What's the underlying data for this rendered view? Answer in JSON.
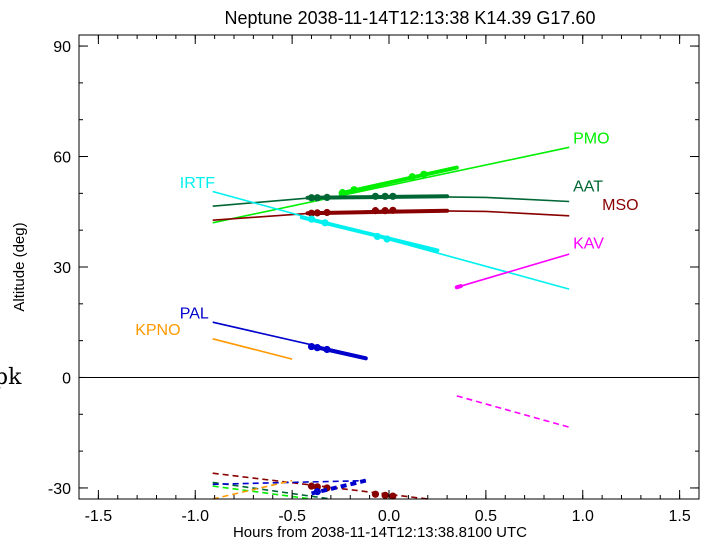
{
  "stray_text": "pk",
  "chart_data": {
    "type": "line",
    "title": "Neptune 2038-11-14T12:13:38  K14.39  G17.60",
    "xlabel": "Hours from 2038-11-14T12:13:38.8100 UTC",
    "ylabel": "Altitude (deg)",
    "xlim": [
      -1.6,
      1.6
    ],
    "ylim": [
      -33,
      93
    ],
    "xticks": [
      -1.5,
      -1.0,
      -0.5,
      0.0,
      0.5,
      1.0,
      1.5
    ],
    "xtick_labels": [
      "-1.5",
      "-1.0",
      "-0.5",
      "0.0",
      "0.5",
      "1.0",
      "1.5"
    ],
    "yticks": [
      -30,
      0,
      30,
      60,
      90
    ],
    "ytick_labels": [
      "-30",
      "0",
      "30",
      "60",
      "90"
    ],
    "zero_line": true,
    "grid": false,
    "series": [
      {
        "name": "PMO",
        "color": "#00ee00",
        "label_x": 0.95,
        "label_y": 63.5,
        "x": [
          -0.91,
          0.93
        ],
        "y": [
          42.0,
          62.5
        ],
        "below_x": [],
        "below_y": [],
        "thick_x": [
          -0.25,
          0.35
        ],
        "thick_y": [
          50.0,
          57.0
        ],
        "dots_x": [
          -0.24,
          -0.18,
          0.12,
          0.18
        ],
        "dots_y": [
          50.2,
          51.0,
          54.5,
          55.2
        ]
      },
      {
        "name": "AAT",
        "color": "#006633",
        "label_x": 0.95,
        "label_y": 50.5,
        "x": [
          -0.91,
          -0.4,
          0.0,
          0.5,
          0.93
        ],
        "y": [
          46.5,
          48.8,
          49.2,
          48.9,
          47.8
        ],
        "below_x": [],
        "below_y": [],
        "thick_x": [
          -0.42,
          0.3
        ],
        "thick_y": [
          48.8,
          49.2
        ],
        "dots_x": [
          -0.4,
          -0.37,
          -0.32,
          -0.07,
          -0.02,
          0.02
        ],
        "dots_y": [
          48.8,
          48.8,
          48.9,
          49.2,
          49.2,
          49.2
        ]
      },
      {
        "name": "MSO",
        "color": "#880000",
        "label_x": 1.1,
        "label_y": 45.5,
        "x": [
          -0.91,
          -0.4,
          0.0,
          0.5,
          0.93
        ],
        "y": [
          42.7,
          44.6,
          45.4,
          45.1,
          43.9
        ],
        "below_x": [
          -0.91,
          0.2
        ],
        "below_y": [
          -26.0,
          -33.5
        ],
        "thick_x": [
          -0.42,
          0.3
        ],
        "thick_y": [
          44.6,
          45.3
        ],
        "dots_x": [
          -0.4,
          -0.37,
          -0.32,
          -0.07,
          -0.02,
          0.02
        ],
        "dots_y": [
          44.6,
          44.7,
          44.8,
          45.3,
          45.3,
          45.4
        ]
      },
      {
        "name": "IRTF",
        "color": "#00f0f0",
        "label_x": -1.08,
        "label_y": 51.5,
        "x": [
          -0.91,
          0.93
        ],
        "y": [
          50.5,
          24.0
        ],
        "below_x": [],
        "below_y": [],
        "thick_x": [
          -0.45,
          0.25
        ],
        "thick_y": [
          43.5,
          34.5
        ],
        "dots_x": [
          -0.4,
          -0.33,
          -0.06,
          -0.01
        ],
        "dots_y": [
          43.0,
          42.0,
          38.3,
          37.6
        ]
      },
      {
        "name": "KAV",
        "color": "#ff00ff",
        "label_x": 0.95,
        "label_y": 35.0,
        "x": [
          0.35,
          0.93
        ],
        "y": [
          24.5,
          33.5
        ],
        "below_x": [
          0.35,
          0.93
        ],
        "below_y": [
          -5.0,
          -13.5
        ],
        "thick_x": [
          0.35,
          0.37
        ],
        "thick_y": [
          24.5,
          24.8
        ],
        "dots_x": [],
        "dots_y": []
      },
      {
        "name": "PAL",
        "color": "#0000cc",
        "label_x": -1.08,
        "label_y": 16.0,
        "x": [
          -0.91,
          -0.12
        ],
        "y": [
          15.0,
          5.5
        ],
        "below_x": [
          -0.91,
          -0.12
        ],
        "below_y": [
          -29.0,
          -28.0
        ],
        "thick_x": [
          -0.4,
          -0.12
        ],
        "thick_y": [
          8.5,
          5.2
        ],
        "dots_x": [
          -0.4,
          -0.37,
          -0.32
        ],
        "dots_y": [
          8.4,
          8.1,
          7.6
        ]
      },
      {
        "name": "KPNO",
        "color": "#ff9900",
        "label_x": -1.31,
        "label_y": 11.5,
        "x": [
          -0.91,
          -0.5
        ],
        "y": [
          10.5,
          5.0
        ],
        "below_x": [
          -0.91,
          -0.5
        ],
        "below_y": [
          -33.5,
          -28.0
        ],
        "thick_x": [],
        "thick_y": [],
        "dots_x": [],
        "dots_y": []
      }
    ]
  }
}
